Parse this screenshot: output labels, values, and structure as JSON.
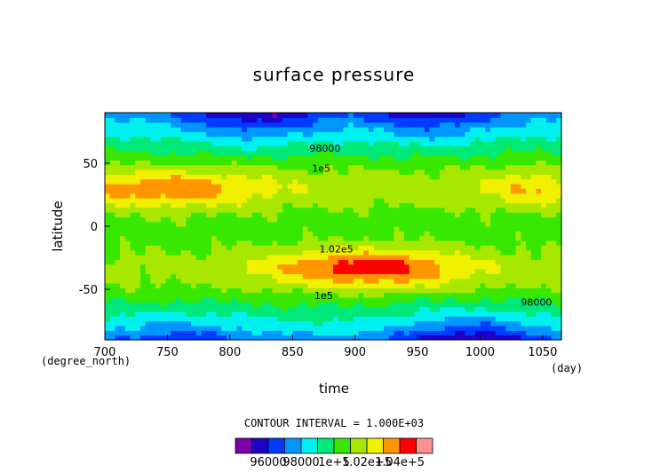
{
  "chart_data": {
    "type": "heatmap",
    "title": "surface pressure",
    "xlabel": "time",
    "ylabel": "latitude",
    "x_unit": "(day)",
    "y_unit": "(degree_north)",
    "xlim": [
      700,
      1065
    ],
    "ylim": [
      -90,
      90
    ],
    "x_ticks": [
      700,
      750,
      800,
      850,
      900,
      950,
      1000,
      1050
    ],
    "y_ticks": [
      50,
      0,
      -50
    ],
    "contour_interval_text": "CONTOUR INTERVAL = 1.000E+03",
    "contour_labels": [
      {
        "text": "98000",
        "x": 876,
        "y": 62
      },
      {
        "text": "1e5",
        "x": 873,
        "y": 46
      },
      {
        "text": "1.02e5",
        "x": 885,
        "y": -18
      },
      {
        "text": "1e5",
        "x": 875,
        "y": -55
      },
      {
        "text": "98000",
        "x": 1045,
        "y": -60
      }
    ],
    "colorbar": {
      "levels": [
        94000,
        95000,
        96000,
        97000,
        98000,
        99000,
        100000,
        101000,
        102000,
        103000,
        104000,
        105000,
        106000
      ],
      "colors": [
        "#7b00a8",
        "#1f00c8",
        "#003cff",
        "#0096ff",
        "#00f0f0",
        "#00e878",
        "#38e800",
        "#a8e800",
        "#f0f000",
        "#ff9600",
        "#ff0000",
        "#ff9090"
      ],
      "tick_labels": [
        "96000",
        "98000",
        "1e+5",
        "1.02e+5",
        "1.04e+5"
      ]
    },
    "field_description_levels_pa": {
      "subtropical_high_north_700_790": 104000,
      "subtropical_high_south_860_960": 104000,
      "equatorial_band": 101000,
      "polar_lows": 96000
    }
  }
}
